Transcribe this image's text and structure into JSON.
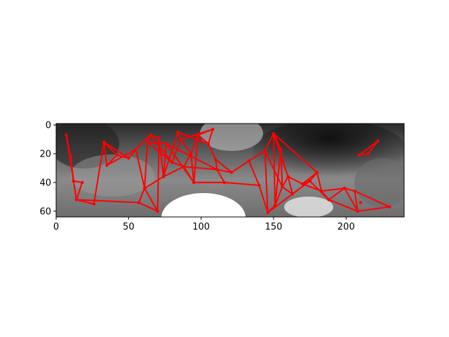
{
  "plot": {
    "x_ticks": [
      0,
      50,
      100,
      150,
      200
    ],
    "y_ticks": [
      0,
      20,
      40,
      60
    ],
    "x_range": [
      0,
      240
    ],
    "y_range": [
      64,
      -1
    ],
    "background": "grayscale image (dark gray upper band, lighter center, white blob at bottom center)",
    "edge_color": "#ff0000",
    "node_color": "#ff0000"
  },
  "chart_data": {
    "type": "scatter",
    "title": "",
    "xlabel": "",
    "ylabel": "",
    "xlim": [
      0,
      240
    ],
    "ylim": [
      64,
      -1
    ],
    "series": [
      {
        "points": [
          [
            7,
            7
          ],
          [
            10,
            22
          ],
          [
            12,
            39
          ],
          [
            14,
            52
          ],
          [
            18,
            40
          ],
          [
            26,
            55
          ],
          [
            33,
            12
          ],
          [
            35,
            28
          ],
          [
            42,
            21
          ],
          [
            50,
            23
          ],
          [
            55,
            17
          ],
          [
            57,
            54
          ],
          [
            61,
            44
          ],
          [
            63,
            12
          ],
          [
            65,
            7
          ],
          [
            71,
            9
          ],
          [
            70,
            60
          ],
          [
            74,
            36
          ],
          [
            76,
            13
          ],
          [
            80,
            26
          ],
          [
            84,
            5
          ],
          [
            86,
            10
          ],
          [
            88,
            29
          ],
          [
            93,
            20
          ],
          [
            95,
            40
          ],
          [
            98,
            7
          ],
          [
            105,
            13
          ],
          [
            108,
            3
          ],
          [
            110,
            24
          ],
          [
            111,
            31
          ],
          [
            116,
            40
          ],
          [
            121,
            33
          ],
          [
            133,
            25
          ],
          [
            140,
            42
          ],
          [
            144,
            18
          ],
          [
            146,
            61
          ],
          [
            150,
            6
          ],
          [
            151,
            56
          ],
          [
            155,
            17
          ],
          [
            156,
            43
          ],
          [
            160,
            36
          ],
          [
            163,
            48
          ],
          [
            170,
            41
          ],
          [
            175,
            39
          ],
          [
            180,
            33
          ],
          [
            183,
            46
          ],
          [
            188,
            52
          ],
          [
            199,
            44
          ],
          [
            206,
            46
          ],
          [
            208,
            60
          ],
          [
            210,
            54
          ],
          [
            209,
            21
          ],
          [
            215,
            20
          ],
          [
            222,
            11
          ],
          [
            230,
            57
          ]
        ],
        "edges": [
          [
            0,
            1
          ],
          [
            0,
            2
          ],
          [
            1,
            2
          ],
          [
            2,
            3
          ],
          [
            3,
            4
          ],
          [
            4,
            2
          ],
          [
            3,
            5
          ],
          [
            5,
            6
          ],
          [
            6,
            7
          ],
          [
            7,
            8
          ],
          [
            6,
            8
          ],
          [
            8,
            9
          ],
          [
            9,
            10
          ],
          [
            10,
            12
          ],
          [
            7,
            10
          ],
          [
            3,
            11
          ],
          [
            11,
            12
          ],
          [
            12,
            13
          ],
          [
            13,
            14
          ],
          [
            14,
            15
          ],
          [
            15,
            16
          ],
          [
            16,
            12
          ],
          [
            12,
            17
          ],
          [
            17,
            18
          ],
          [
            18,
            13
          ],
          [
            13,
            19
          ],
          [
            19,
            14
          ],
          [
            15,
            17
          ],
          [
            17,
            20
          ],
          [
            20,
            21
          ],
          [
            21,
            19
          ],
          [
            19,
            22
          ],
          [
            22,
            17
          ],
          [
            22,
            23
          ],
          [
            23,
            21
          ],
          [
            23,
            24
          ],
          [
            24,
            22
          ],
          [
            24,
            25
          ],
          [
            25,
            23
          ],
          [
            25,
            26
          ],
          [
            26,
            27
          ],
          [
            27,
            25
          ],
          [
            27,
            21
          ],
          [
            26,
            28
          ],
          [
            28,
            29
          ],
          [
            29,
            30
          ],
          [
            30,
            24
          ],
          [
            29,
            31
          ],
          [
            31,
            32
          ],
          [
            32,
            33
          ],
          [
            33,
            30
          ],
          [
            32,
            34
          ],
          [
            34,
            35
          ],
          [
            35,
            33
          ],
          [
            34,
            36
          ],
          [
            36,
            37
          ],
          [
            37,
            38
          ],
          [
            38,
            36
          ],
          [
            38,
            39
          ],
          [
            39,
            34
          ],
          [
            39,
            40
          ],
          [
            40,
            41
          ],
          [
            41,
            35
          ],
          [
            40,
            42
          ],
          [
            42,
            43
          ],
          [
            43,
            41
          ],
          [
            43,
            44
          ],
          [
            44,
            42
          ],
          [
            44,
            45
          ],
          [
            45,
            46
          ],
          [
            46,
            43
          ],
          [
            46,
            47
          ],
          [
            47,
            45
          ],
          [
            47,
            48
          ],
          [
            48,
            49
          ],
          [
            49,
            46
          ],
          [
            48,
            54
          ],
          [
            49,
            54
          ],
          [
            47,
            49
          ],
          [
            51,
            52
          ],
          [
            52,
            53
          ],
          [
            53,
            51
          ],
          [
            36,
            40
          ],
          [
            37,
            39
          ],
          [
            35,
            37
          ],
          [
            9,
            6
          ],
          [
            11,
            16
          ],
          [
            18,
            24
          ],
          [
            20,
            26
          ],
          [
            28,
            31
          ],
          [
            10,
            14
          ],
          [
            18,
            29
          ],
          [
            22,
            29
          ],
          [
            36,
            44
          ],
          [
            39,
            41
          ],
          [
            42,
            45
          ]
        ]
      }
    ]
  }
}
